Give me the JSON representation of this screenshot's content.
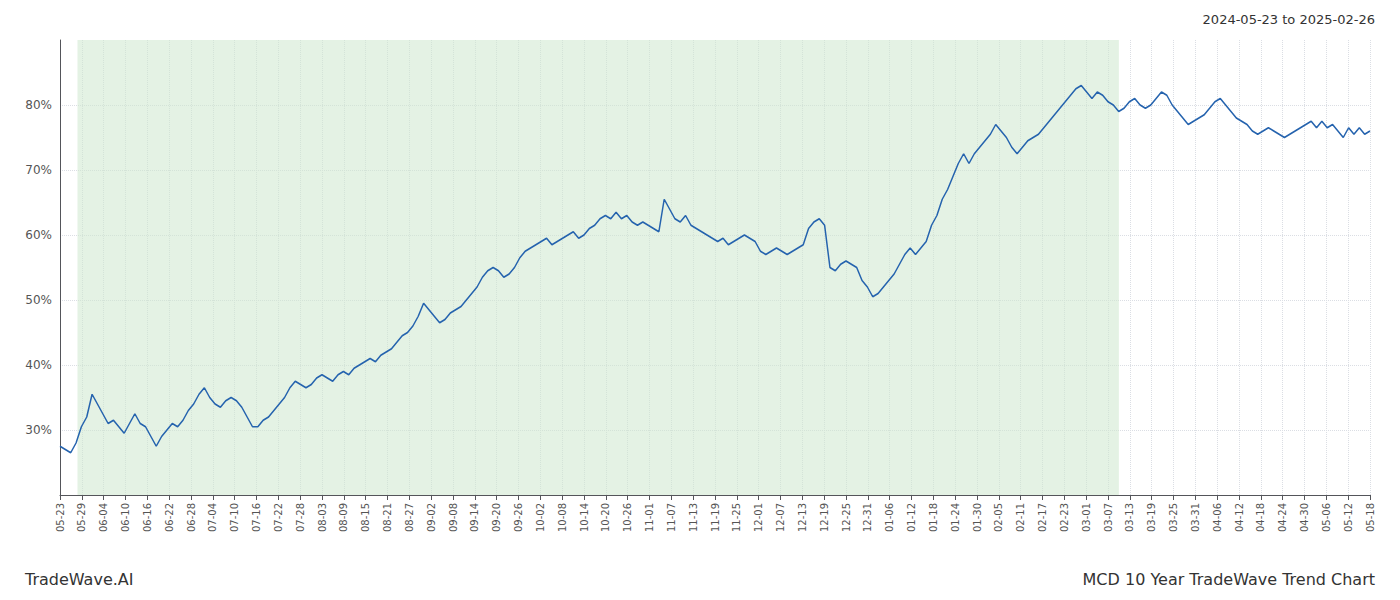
{
  "chart_data": {
    "type": "line",
    "title": "MCD 10 Year TradeWave Trend Chart",
    "subtitle": "2024-05-23 to 2025-02-26",
    "annotations": [
      "TradeWave.AI"
    ],
    "color": "#2563ae",
    "grid": true,
    "xlim": [
      0,
      60
    ],
    "xticks": [
      {
        "value": 0,
        "label": "05-23"
      },
      {
        "value": 1,
        "label": "05-29"
      },
      {
        "value": 2,
        "label": "06-04"
      },
      {
        "value": 3,
        "label": "06-10"
      },
      {
        "value": 4,
        "label": "06-16"
      },
      {
        "value": 5,
        "label": "06-22"
      },
      {
        "value": 6,
        "label": "06-28"
      },
      {
        "value": 7,
        "label": "07-04"
      },
      {
        "value": 8,
        "label": "07-10"
      },
      {
        "value": 9,
        "label": "07-16"
      },
      {
        "value": 10,
        "label": "07-22"
      },
      {
        "value": 11,
        "label": "07-28"
      },
      {
        "value": 12,
        "label": "08-03"
      },
      {
        "value": 13,
        "label": "08-09"
      },
      {
        "value": 14,
        "label": "08-15"
      },
      {
        "value": 15,
        "label": "08-21"
      },
      {
        "value": 16,
        "label": "08-27"
      },
      {
        "value": 17,
        "label": "09-02"
      },
      {
        "value": 18,
        "label": "09-08"
      },
      {
        "value": 19,
        "label": "09-14"
      },
      {
        "value": 20,
        "label": "09-20"
      },
      {
        "value": 21,
        "label": "09-26"
      },
      {
        "value": 22,
        "label": "10-02"
      },
      {
        "value": 23,
        "label": "10-08"
      },
      {
        "value": 24,
        "label": "10-14"
      },
      {
        "value": 25,
        "label": "10-20"
      },
      {
        "value": 26,
        "label": "10-26"
      },
      {
        "value": 27,
        "label": "11-01"
      },
      {
        "value": 28,
        "label": "11-07"
      },
      {
        "value": 29,
        "label": "11-13"
      },
      {
        "value": 30,
        "label": "11-19"
      },
      {
        "value": 31,
        "label": "11-25"
      },
      {
        "value": 32,
        "label": "12-01"
      },
      {
        "value": 33,
        "label": "12-07"
      },
      {
        "value": 34,
        "label": "12-13"
      },
      {
        "value": 35,
        "label": "12-19"
      },
      {
        "value": 36,
        "label": "12-25"
      },
      {
        "value": 37,
        "label": "12-31"
      },
      {
        "value": 38,
        "label": "01-06"
      },
      {
        "value": 39,
        "label": "01-12"
      },
      {
        "value": 40,
        "label": "01-18"
      },
      {
        "value": 41,
        "label": "01-24"
      },
      {
        "value": 42,
        "label": "01-30"
      },
      {
        "value": 43,
        "label": "02-05"
      },
      {
        "value": 44,
        "label": "02-11"
      },
      {
        "value": 45,
        "label": "02-17"
      },
      {
        "value": 46,
        "label": "02-23"
      },
      {
        "value": 47,
        "label": "03-01"
      },
      {
        "value": 48,
        "label": "03-07"
      },
      {
        "value": 49,
        "label": "03-13"
      },
      {
        "value": 50,
        "label": "03-19"
      },
      {
        "value": 51,
        "label": "03-25"
      },
      {
        "value": 52,
        "label": "03-31"
      },
      {
        "value": 53,
        "label": "04-06"
      },
      {
        "value": 54,
        "label": "04-12"
      },
      {
        "value": 55,
        "label": "04-18"
      },
      {
        "value": 56,
        "label": "04-24"
      },
      {
        "value": 57,
        "label": "04-30"
      },
      {
        "value": 58,
        "label": "05-06"
      },
      {
        "value": 59,
        "label": "05-12"
      },
      {
        "value": 60,
        "label": "05-18"
      }
    ],
    "ylim": [
      20,
      90
    ],
    "yticks": [
      {
        "value": 30,
        "label": "30%"
      },
      {
        "value": 40,
        "label": "40%"
      },
      {
        "value": 50,
        "label": "50%"
      },
      {
        "value": 60,
        "label": "60%"
      },
      {
        "value": 70,
        "label": "70%"
      },
      {
        "value": 80,
        "label": "80%"
      }
    ],
    "shaded_region": {
      "start": 0.8,
      "end": 48.5,
      "color": "#cde8cd"
    },
    "x": [
      0,
      0.2449,
      0.4898,
      0.7347,
      0.9796,
      1.2245,
      1.4694,
      1.7143,
      1.9592,
      2.2041,
      2.449,
      2.6939,
      2.9388,
      3.1837,
      3.4286,
      3.6735,
      3.9184,
      4.1633,
      4.4082,
      4.6531,
      4.898,
      5.1429,
      5.3878,
      5.6327,
      5.8776,
      6.1224,
      6.3673,
      6.6122,
      6.8571,
      7.102,
      7.3469,
      7.5918,
      7.8367,
      8.0816,
      8.3265,
      8.5714,
      8.8163,
      9.0612,
      9.3061,
      9.551,
      9.7959,
      10.0408,
      10.2857,
      10.5306,
      10.7755,
      11.0204,
      11.2653,
      11.5102,
      11.7551,
      12,
      12.2449,
      12.4898,
      12.7347,
      12.9796,
      13.2245,
      13.4694,
      13.7143,
      13.9592,
      14.2041,
      14.449,
      14.6939,
      14.9388,
      15.1837,
      15.4286,
      15.6735,
      15.9184,
      16.1633,
      16.4082,
      16.6531,
      16.898,
      17.1429,
      17.3878,
      17.6327,
      17.8776,
      18.1224,
      18.3673,
      18.6122,
      18.8571,
      19.102,
      19.3469,
      19.5918,
      19.8367,
      20.0816,
      20.3265,
      20.5714,
      20.8163,
      21.0612,
      21.3061,
      21.551,
      21.7959,
      22.0408,
      22.2857,
      22.5306,
      22.7755,
      23.0204,
      23.2653,
      23.5102,
      23.7551,
      24,
      24.2449,
      24.4898,
      24.7347,
      24.9796,
      25.2245,
      25.4694,
      25.7143,
      25.9592,
      26.2041,
      26.449,
      26.6939,
      26.9388,
      27.1837,
      27.4286,
      27.6735,
      27.9184,
      28.1633,
      28.4082,
      28.6531,
      28.898,
      29.1429,
      29.3878,
      29.6327,
      29.8776,
      30.1224,
      30.3673,
      30.6122,
      30.8571,
      31.102,
      31.3469,
      31.5918,
      31.8367,
      32.0816,
      32.3265,
      32.5714,
      32.8163,
      33.0612,
      33.3061,
      33.551,
      33.7959,
      34.0408,
      34.2857,
      34.5306,
      34.7755,
      35.0204,
      35.2653,
      35.5102,
      35.7551,
      36,
      36.2449,
      36.4898,
      36.7347,
      36.9796,
      37.2245,
      37.4694,
      37.7143,
      37.9592,
      38.2041,
      38.449,
      38.6939,
      38.9388,
      39.1837,
      39.4286,
      39.6735,
      39.9184,
      40.1633,
      40.4082,
      40.6531,
      40.898,
      41.1429,
      41.3878,
      41.6327,
      41.8776,
      42.1224,
      42.3673,
      42.6122,
      42.8571,
      43.102,
      43.3469,
      43.5918,
      43.8367,
      44.0816,
      44.3265,
      44.5714,
      44.8163,
      45.0612,
      45.3061,
      45.551,
      45.7959,
      46.0408,
      46.2857,
      46.5306,
      46.7755,
      47.0204,
      47.2653,
      47.5102,
      47.7551,
      48,
      48.2449,
      48.4898,
      48.7347,
      48.9796,
      49.2245,
      49.4694,
      49.7143,
      49.9592,
      50.2041,
      50.449,
      50.6939,
      50.9388,
      51.1837,
      51.4286,
      51.6735,
      51.9184,
      52.1633,
      52.4082,
      52.6531,
      52.898,
      53.1429,
      53.3878,
      53.6327,
      53.8776,
      54.1224,
      54.3673,
      54.6122,
      54.8571,
      55.102,
      55.3469,
      55.5918,
      55.8367,
      56.0816,
      56.3265,
      56.5714,
      56.8163,
      57.0612,
      57.3061,
      57.551,
      57.7959,
      58.0408,
      58.2857,
      58.5306,
      58.7755,
      59.0204,
      59.2653,
      59.5102,
      59.7551,
      60
    ],
    "values": [
      27.5,
      27.0,
      26.5,
      28.0,
      30.5,
      32.0,
      35.5,
      34.0,
      32.5,
      31.0,
      31.5,
      30.5,
      29.5,
      31.0,
      32.5,
      31.0,
      30.5,
      29.0,
      27.5,
      29.0,
      30.0,
      31.0,
      30.5,
      31.5,
      33.0,
      34.0,
      35.5,
      36.5,
      35.0,
      34.0,
      33.5,
      34.5,
      35.0,
      34.5,
      33.5,
      32.0,
      30.5,
      30.5,
      31.5,
      32.0,
      33.0,
      34.0,
      35.0,
      36.5,
      37.5,
      37.0,
      36.5,
      37.0,
      38.0,
      38.5,
      38.0,
      37.5,
      38.5,
      39.0,
      38.5,
      39.5,
      40.0,
      40.5,
      41.0,
      40.5,
      41.5,
      42.0,
      42.5,
      43.5,
      44.5,
      45.0,
      46.0,
      47.5,
      49.5,
      48.5,
      47.5,
      46.5,
      47.0,
      48.0,
      48.5,
      49.0,
      50.0,
      51.0,
      52.0,
      53.5,
      54.5,
      55.0,
      54.5,
      53.5,
      54.0,
      55.0,
      56.5,
      57.5,
      58.0,
      58.5,
      59.0,
      59.5,
      58.5,
      59.0,
      59.5,
      60.0,
      60.5,
      59.5,
      60.0,
      61.0,
      61.5,
      62.5,
      63.0,
      62.5,
      63.5,
      62.5,
      63.0,
      62.0,
      61.5,
      62.0,
      61.5,
      61.0,
      60.5,
      65.5,
      64.0,
      62.5,
      62.0,
      63.0,
      61.5,
      61.0,
      60.5,
      60.0,
      59.5,
      59.0,
      59.5,
      58.5,
      59.0,
      59.5,
      60.0,
      59.5,
      59.0,
      57.5,
      57.0,
      57.5,
      58.0,
      57.5,
      57.0,
      57.5,
      58.0,
      58.5,
      61.0,
      62.0,
      62.5,
      61.5,
      55.0,
      54.5,
      55.5,
      56.0,
      55.5,
      55.0,
      53.0,
      52.0,
      50.5,
      51.0,
      52.0,
      53.0,
      54.0,
      55.5,
      57.0,
      58.0,
      57.0,
      58.0,
      59.0,
      61.5,
      63.0,
      65.5,
      67.0,
      69.0,
      71.0,
      72.5,
      71.0,
      72.5,
      73.5,
      74.5,
      75.5,
      77.0,
      76.0,
      75.0,
      73.5,
      72.5,
      73.5,
      74.5,
      75.0,
      75.5,
      76.5,
      77.5,
      78.5,
      79.5,
      80.5,
      81.5,
      82.5,
      83.0,
      82.0,
      81.0,
      82.0,
      81.5,
      80.5,
      80.0,
      79.0,
      79.5,
      80.5,
      81.0,
      80.0,
      79.5,
      80.0,
      81.0,
      82.0,
      81.5,
      80.0,
      79.0,
      78.0,
      77.0,
      77.5,
      78.0,
      78.5,
      79.5,
      80.5,
      81.0,
      80.0,
      79.0,
      78.0,
      77.5,
      77.0,
      76.0,
      75.5,
      76.0,
      76.5,
      76.0,
      75.5,
      75.0,
      75.5,
      76.0,
      76.5,
      77.0,
      77.5,
      76.5,
      77.5,
      76.5,
      77.0,
      76.0,
      75.0,
      76.5,
      75.5,
      76.5,
      75.5,
      76.0
    ]
  }
}
